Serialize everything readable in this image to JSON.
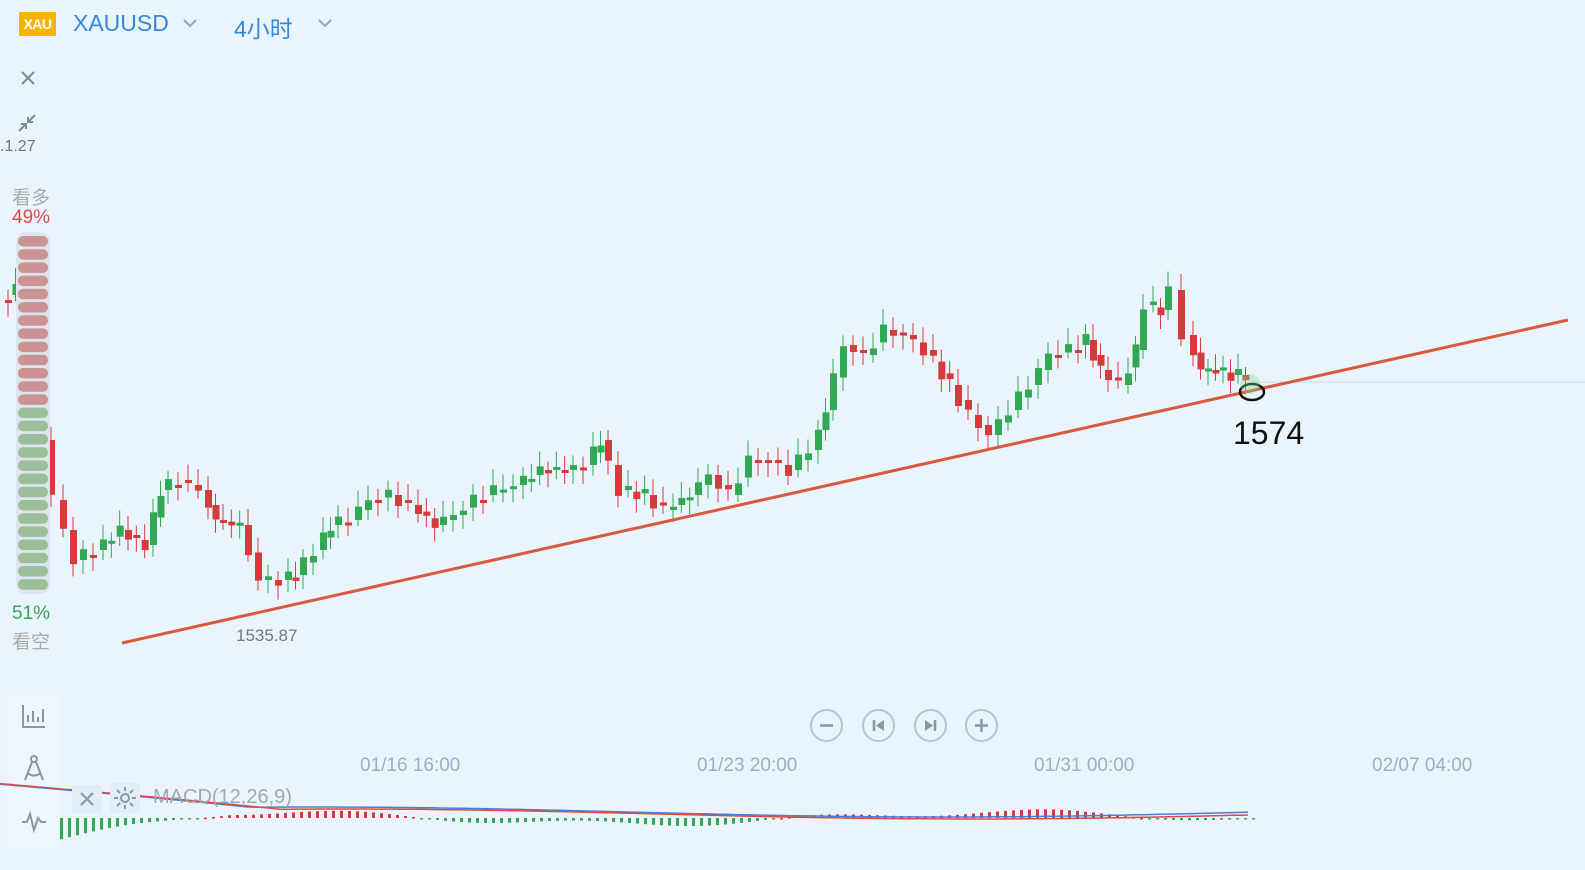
{
  "header": {
    "logo_text": "XAU",
    "symbol": "XAUUSD",
    "interval": "4小时"
  },
  "sentiment": {
    "bull_label": "看多",
    "bull_pct": "49%",
    "bear_label": "看空",
    "bear_pct": "51%",
    "bull_fraction": 0.49
  },
  "labels": {
    "top_price": ".1.27",
    "low_price": "1535.87",
    "annotation": "1574"
  },
  "xaxis": {
    "ticks": [
      "01/16 16:00",
      "01/23 20:00",
      "01/31 00:00",
      "02/07 04:00"
    ]
  },
  "indicator": {
    "name": "MACD(12,26,9)"
  },
  "colors": {
    "up": "#33a853",
    "down": "#d63a3a",
    "trendline": "#d85a3e",
    "accent": "#3a86d8",
    "background": "#eaf4fc"
  },
  "icons": {
    "close": "close-icon",
    "collapse": "collapse-icon",
    "indicators": "chart-indicator-icon",
    "drawing": "drawing-tool-icon",
    "settings": "gear-icon",
    "zoom_out": "zoom-out-icon",
    "zoom_in": "zoom-in-icon",
    "skip_back": "skip-back-icon",
    "skip_forward": "skip-forward-icon"
  }
}
